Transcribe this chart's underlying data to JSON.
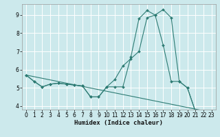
{
  "title": "",
  "xlabel": "Humidex (Indice chaleur)",
  "xlim": [
    -0.5,
    23.5
  ],
  "ylim": [
    3.8,
    9.6
  ],
  "yticks": [
    4,
    5,
    6,
    7,
    8,
    9
  ],
  "xticks": [
    0,
    1,
    2,
    3,
    4,
    5,
    6,
    7,
    8,
    9,
    10,
    11,
    12,
    13,
    14,
    15,
    16,
    17,
    18,
    19,
    20,
    21,
    22,
    23
  ],
  "bg_color": "#cce9ec",
  "grid_color": "#ffffff",
  "line_color": "#2d7b73",
  "lines": [
    {
      "x": [
        0,
        1,
        2,
        3,
        4,
        5,
        6,
        7,
        8,
        9,
        10,
        11,
        12,
        13,
        14,
        15,
        16,
        17,
        18,
        19,
        20,
        21,
        22,
        23
      ],
      "y": [
        5.7,
        5.35,
        5.05,
        5.2,
        5.25,
        5.2,
        5.15,
        5.1,
        4.5,
        4.5,
        5.05,
        5.05,
        5.05,
        6.7,
        8.8,
        9.25,
        9.0,
        9.3,
        8.85,
        5.35,
        5.0,
        3.7,
        3.65,
        3.65
      ],
      "marker": true
    },
    {
      "x": [
        0,
        1,
        2,
        3,
        4,
        5,
        6,
        7,
        8,
        9,
        10,
        11,
        12,
        13,
        14,
        15,
        16,
        17,
        18,
        19,
        20,
        21,
        22,
        23
      ],
      "y": [
        5.7,
        5.35,
        5.05,
        5.2,
        5.25,
        5.2,
        5.15,
        5.1,
        4.5,
        4.5,
        5.05,
        5.45,
        6.2,
        6.6,
        7.0,
        8.85,
        9.0,
        7.35,
        5.35,
        5.35,
        5.0,
        3.7,
        3.65,
        3.65
      ],
      "marker": true
    },
    {
      "x": [
        0,
        23
      ],
      "y": [
        5.7,
        3.65
      ],
      "marker": false
    }
  ],
  "figsize": [
    3.2,
    2.0
  ],
  "dpi": 100,
  "tick_fontsize": 5.5,
  "xlabel_fontsize": 6.5
}
